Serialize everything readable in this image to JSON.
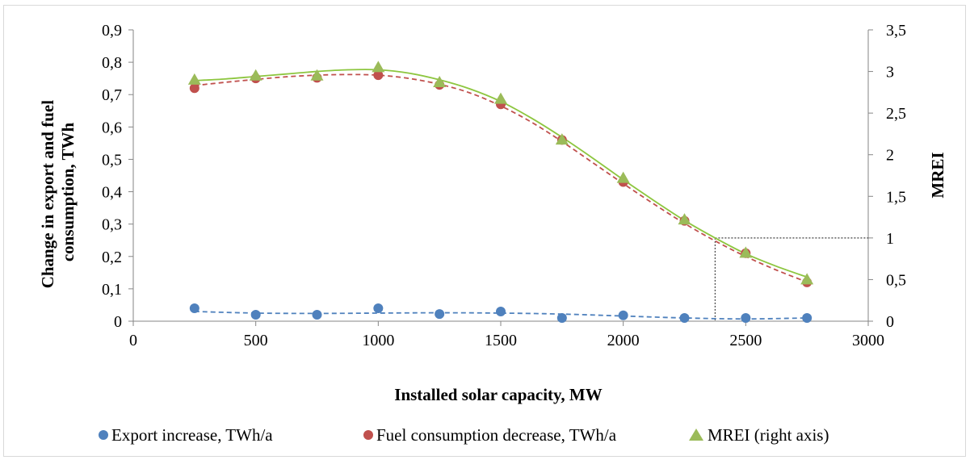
{
  "chart_data": {
    "type": "scatter",
    "xlabel": "Installed solar capacity, MW",
    "ylabel": "Change in export and fuel consumption, TWh",
    "ylabel_lines": [
      "Change in export and fuel",
      "consumption, TWh"
    ],
    "y2label": "MREI",
    "xlim": [
      0,
      3000
    ],
    "ylim": [
      0,
      0.9
    ],
    "y2lim": [
      0,
      3.5
    ],
    "x_ticks": [
      "0",
      "500",
      "1000",
      "1500",
      "2000",
      "2500",
      "3000"
    ],
    "y_ticks": [
      "0",
      "0,1",
      "0,2",
      "0,3",
      "0,4",
      "0,5",
      "0,6",
      "0,7",
      "0,8",
      "0,9"
    ],
    "y2_ticks": [
      "0",
      "0,5",
      "1",
      "1,5",
      "2",
      "2,5",
      "3",
      "3,5"
    ],
    "grid": false,
    "legend_position": "bottom",
    "reference_line": {
      "x": 2375,
      "y2": 1
    },
    "series": [
      {
        "name": "Export increase, TWh/a",
        "axis": "left",
        "marker": "circle",
        "color": "#4f81bd",
        "x": [
          250,
          500,
          750,
          1000,
          1250,
          1500,
          1750,
          2000,
          2250,
          2500,
          2750
        ],
        "values": [
          0.04,
          0.02,
          0.02,
          0.04,
          0.022,
          0.03,
          0.01,
          0.018,
          0.01,
          0.01,
          0.01
        ],
        "trendline": {
          "style": "dashed",
          "color": "#4f81bd",
          "x": [
            250,
            500,
            750,
            1000,
            1250,
            1500,
            1750,
            2000,
            2250,
            2500,
            2750
          ],
          "values": [
            0.03,
            0.025,
            0.024,
            0.025,
            0.026,
            0.025,
            0.022,
            0.016,
            0.01,
            0.007,
            0.01
          ]
        }
      },
      {
        "name": "Fuel consumption decrease, TWh/a",
        "axis": "left",
        "marker": "circle",
        "color": "#c0504d",
        "x": [
          250,
          500,
          750,
          1000,
          1250,
          1500,
          1750,
          2000,
          2250,
          2500,
          2750
        ],
        "values": [
          0.72,
          0.75,
          0.752,
          0.76,
          0.73,
          0.67,
          0.56,
          0.43,
          0.31,
          0.21,
          0.12
        ],
        "trendline": {
          "style": "dashed",
          "color": "#c0504d",
          "x": [
            250,
            375,
            500,
            625,
            750,
            875,
            1000,
            1125,
            1250,
            1375,
            1500,
            1625,
            1750,
            1875,
            2000,
            2125,
            2250,
            2375,
            2500,
            2625,
            2750
          ],
          "values": [
            0.728,
            0.738,
            0.747,
            0.755,
            0.76,
            0.762,
            0.76,
            0.75,
            0.732,
            0.705,
            0.665,
            0.615,
            0.555,
            0.49,
            0.425,
            0.362,
            0.302,
            0.248,
            0.2,
            0.158,
            0.121
          ]
        }
      },
      {
        "name": "MREI (right axis)",
        "axis": "right",
        "marker": "triangle",
        "color": "#9bbb59",
        "x": [
          250,
          500,
          750,
          1000,
          1250,
          1500,
          1750,
          2000,
          2250,
          2500,
          2750
        ],
        "values": [
          2.9,
          2.95,
          2.95,
          3.05,
          2.87,
          2.67,
          2.18,
          1.72,
          1.22,
          0.82,
          0.5
        ],
        "trendline": {
          "style": "solid",
          "color": "#8dc63f",
          "x": [
            250,
            375,
            500,
            625,
            750,
            875,
            1000,
            1125,
            1250,
            1375,
            1500,
            1625,
            1750,
            1875,
            2000,
            2125,
            2250,
            2375,
            2500,
            2625,
            2750
          ],
          "values": [
            2.89,
            2.91,
            2.94,
            2.97,
            3.0,
            3.02,
            3.02,
            2.98,
            2.9,
            2.79,
            2.64,
            2.44,
            2.21,
            1.96,
            1.7,
            1.45,
            1.21,
            1.0,
            0.81,
            0.66,
            0.53
          ]
        }
      }
    ]
  }
}
